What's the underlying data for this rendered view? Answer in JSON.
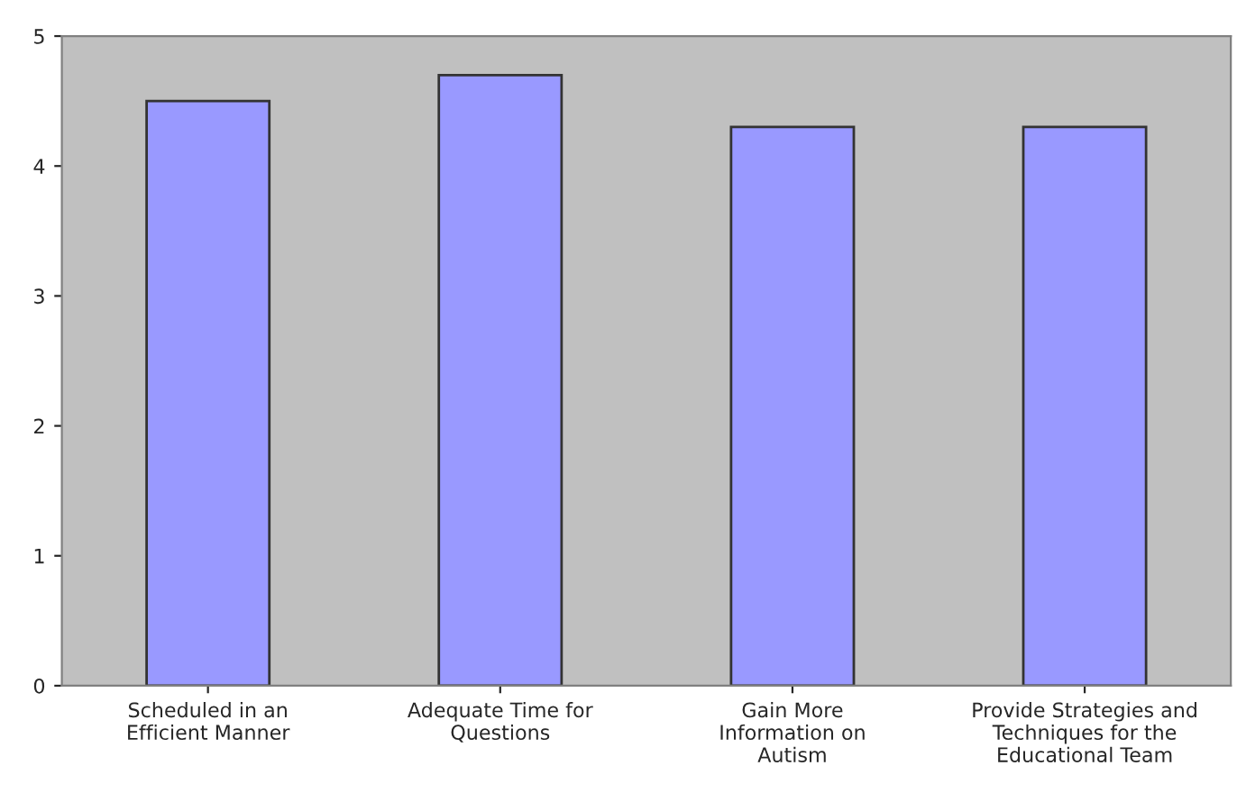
{
  "chart_data": {
    "type": "bar",
    "categories": [
      "Scheduled in an\nEfficient Manner",
      "Adequate Time for\nQuestions",
      "Gain More\nInformation on\nAutism",
      "Provide Strategies and\nTechniques for the\nEducational Team"
    ],
    "values": [
      4.5,
      4.7,
      4.3,
      4.3
    ],
    "color": "#9999ff",
    "ylim": [
      0,
      5
    ],
    "yticks": [
      0,
      1,
      2,
      3,
      4,
      5
    ],
    "grid": false
  }
}
